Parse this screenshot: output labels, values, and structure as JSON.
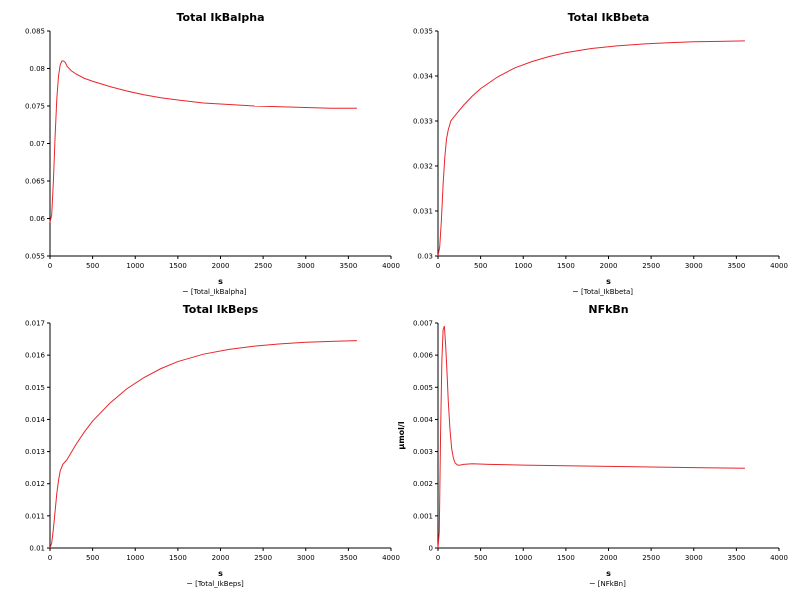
{
  "chart_data": [
    {
      "type": "line",
      "title": "Total IkBalpha",
      "xlabel": "s",
      "ylabel": "",
      "xlim": [
        0,
        4000
      ],
      "ylim": [
        0.055,
        0.085
      ],
      "xticks": [
        "0",
        "500",
        "1000",
        "1500",
        "2000",
        "2500",
        "3000",
        "3500",
        "4000"
      ],
      "yticks": [
        "0.055",
        "0.06",
        "0.065",
        "0.07",
        "0.075",
        "0.08",
        "0.085"
      ],
      "legend_placement": "bottom-center",
      "grid": false,
      "series": [
        {
          "name": "[Total_IkBalpha]",
          "color": "#e8262c",
          "x": [
            0,
            20,
            40,
            60,
            80,
            100,
            120,
            140,
            160,
            180,
            200,
            250,
            300,
            400,
            500,
            700,
            900,
            1100,
            1300,
            1500,
            1800,
            2100,
            2400,
            2700,
            3000,
            3300,
            3600
          ],
          "y": [
            0.0595,
            0.0605,
            0.065,
            0.071,
            0.076,
            0.079,
            0.0805,
            0.081,
            0.081,
            0.0808,
            0.0803,
            0.0797,
            0.0793,
            0.0787,
            0.0783,
            0.0776,
            0.077,
            0.0765,
            0.0761,
            0.0758,
            0.0754,
            0.0752,
            0.075,
            0.0749,
            0.0748,
            0.0747,
            0.0747
          ]
        }
      ]
    },
    {
      "type": "line",
      "title": "Total IkBbeta",
      "xlabel": "s",
      "ylabel": "",
      "xlim": [
        0,
        4000
      ],
      "ylim": [
        0.03,
        0.035
      ],
      "xticks": [
        "0",
        "500",
        "1000",
        "1500",
        "2000",
        "2500",
        "3000",
        "3500",
        "4000"
      ],
      "yticks": [
        "0.03",
        "0.031",
        "0.032",
        "0.033",
        "0.034",
        "0.035"
      ],
      "legend_placement": "bottom-center",
      "grid": false,
      "series": [
        {
          "name": "[Total_IkBbeta]",
          "color": "#e8262c",
          "x": [
            0,
            20,
            40,
            60,
            80,
            100,
            120,
            150,
            200,
            300,
            400,
            500,
            700,
            900,
            1100,
            1300,
            1500,
            1800,
            2100,
            2400,
            2700,
            3000,
            3300,
            3600
          ],
          "y": [
            0.03,
            0.0302,
            0.0308,
            0.0316,
            0.0322,
            0.0326,
            0.0328,
            0.033,
            0.03312,
            0.03335,
            0.03355,
            0.03372,
            0.03398,
            0.03418,
            0.03432,
            0.03443,
            0.03452,
            0.03461,
            0.03467,
            0.03471,
            0.03474,
            0.03476,
            0.03477,
            0.03478
          ]
        }
      ]
    },
    {
      "type": "line",
      "title": "Total IkBeps",
      "xlabel": "s",
      "ylabel": "",
      "xlim": [
        0,
        4000
      ],
      "ylim": [
        0.01,
        0.017
      ],
      "xticks": [
        "0",
        "500",
        "1000",
        "1500",
        "2000",
        "2500",
        "3000",
        "3500",
        "4000"
      ],
      "yticks": [
        "0.01",
        "0.011",
        "0.012",
        "0.013",
        "0.014",
        "0.015",
        "0.016",
        "0.017"
      ],
      "legend_placement": "bottom-center",
      "grid": false,
      "series": [
        {
          "name": "[Total_IkBeps]",
          "color": "#e8262c",
          "x": [
            0,
            20,
            40,
            60,
            80,
            100,
            120,
            150,
            200,
            300,
            400,
            500,
            700,
            900,
            1100,
            1300,
            1500,
            1800,
            2100,
            2400,
            2700,
            3000,
            3300,
            3600
          ],
          "y": [
            0.01,
            0.01015,
            0.0106,
            0.01115,
            0.0117,
            0.0121,
            0.0124,
            0.0126,
            0.01275,
            0.0132,
            0.0136,
            0.01395,
            0.0145,
            0.01495,
            0.0153,
            0.01558,
            0.0158,
            0.01603,
            0.01618,
            0.01628,
            0.01635,
            0.0164,
            0.01643,
            0.01645
          ]
        }
      ]
    },
    {
      "type": "line",
      "title": "NFkBn",
      "xlabel": "s",
      "ylabel": "µmol/l",
      "xlim": [
        0,
        4000
      ],
      "ylim": [
        0,
        0.007
      ],
      "xticks": [
        "0",
        "500",
        "1000",
        "1500",
        "2000",
        "2500",
        "3000",
        "3500",
        "4000"
      ],
      "yticks": [
        "0",
        "0.001",
        "0.002",
        "0.003",
        "0.004",
        "0.005",
        "0.006",
        "0.007"
      ],
      "legend_placement": "bottom-center",
      "grid": false,
      "series": [
        {
          "name": "[NFkBn]",
          "color": "#e8262c",
          "x": [
            0,
            15,
            30,
            45,
            60,
            75,
            90,
            105,
            120,
            140,
            160,
            180,
            200,
            230,
            260,
            300,
            400,
            600,
            1000,
            1500,
            2000,
            2500,
            3000,
            3600
          ],
          "y": [
            0.0,
            0.0005,
            0.0035,
            0.0058,
            0.0068,
            0.0069,
            0.0063,
            0.0055,
            0.0046,
            0.0037,
            0.0031,
            0.0028,
            0.00265,
            0.00258,
            0.00258,
            0.0026,
            0.00262,
            0.0026,
            0.00258,
            0.00256,
            0.00254,
            0.00252,
            0.0025,
            0.00248
          ]
        }
      ]
    }
  ]
}
